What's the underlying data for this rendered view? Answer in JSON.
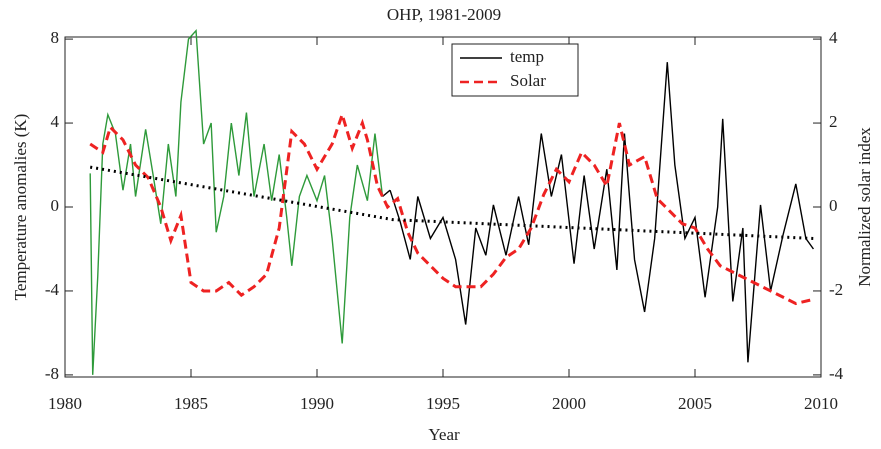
{
  "chart_data": {
    "type": "line",
    "title": "OHP, 1981-2009",
    "xlabel": "Year",
    "ylabel": "Temperature anomalies (K)",
    "y2label": "Normalized solar index",
    "xlim": [
      1980,
      2010
    ],
    "xticks": [
      1980,
      1985,
      1990,
      1995,
      2000,
      2005,
      2010
    ],
    "ylim": [
      -8.1,
      8.1
    ],
    "yticks": [
      -8,
      -4,
      0,
      4,
      8
    ],
    "y2lim": [
      -4.05,
      4.05
    ],
    "y2ticks": [
      -4,
      -2,
      0,
      2,
      4
    ],
    "legend": "top",
    "series": [
      {
        "name": "temp",
        "color": "#000000",
        "dash": "solid",
        "highlight": {
          "xlim": [
            1981,
            1992.7
          ],
          "color": "#2e9a3a"
        },
        "x": [
          1981,
          1981.1,
          1981.3,
          1981.5,
          1981.7,
          1982,
          1982.3,
          1982.6,
          1982.8,
          1983.2,
          1983.5,
          1983.8,
          1984.1,
          1984.4,
          1984.6,
          1984.9,
          1985.2,
          1985.5,
          1985.8,
          1986,
          1986.3,
          1986.6,
          1986.9,
          1987.2,
          1987.5,
          1987.9,
          1988.2,
          1988.5,
          1988.8,
          1989,
          1989.3,
          1989.6,
          1990,
          1990.3,
          1990.6,
          1991,
          1991.3,
          1991.6,
          1992,
          1992.3,
          1992.6,
          1992.9,
          1993.3,
          1993.7,
          1994,
          1994.5,
          1995,
          1995.5,
          1995.9,
          1996.3,
          1996.7,
          1997,
          1997.5,
          1998,
          1998.4,
          1998.9,
          1999.3,
          1999.7,
          2000.2,
          2000.6,
          2001,
          2001.5,
          2001.9,
          2002.2,
          2002.6,
          2003,
          2003.4,
          2003.9,
          2004.2,
          2004.6,
          2005,
          2005.4,
          2005.9,
          2006.1,
          2006.5,
          2006.9,
          2007.1,
          2007.6,
          2008,
          2008.5,
          2009,
          2009.4,
          2009.7
        ],
        "values": [
          1.6,
          -8.0,
          -3.3,
          3,
          4.4,
          3.5,
          0.8,
          3,
          0.5,
          3.7,
          1.5,
          -0.8,
          3,
          0.5,
          5,
          8,
          8.4,
          3,
          4,
          -1.2,
          0.5,
          4,
          1.5,
          4.5,
          0.5,
          3,
          0.3,
          2.5,
          -0.5,
          -2.8,
          0.5,
          1.5,
          0.3,
          1.5,
          -1.5,
          -6.5,
          -0.5,
          2,
          0.3,
          3.5,
          0.5,
          0.8,
          -0.7,
          -2.5,
          0.5,
          -1.5,
          -0.5,
          -2.5,
          -5.6,
          -1,
          -2.3,
          0.1,
          -2.3,
          0.5,
          -1.8,
          3.5,
          0.5,
          2.5,
          -2.7,
          1.5,
          -2,
          1.8,
          -3,
          3.5,
          -2.5,
          -5,
          -1.5,
          6.9,
          2,
          -1.5,
          -0.5,
          -4.3,
          0,
          4.2,
          -4.5,
          -1,
          -7.4,
          0.1,
          -4,
          -1.3,
          1.1,
          -1.5,
          -2
        ]
      },
      {
        "name": "Solar",
        "color": "#ee2222",
        "dash": "dashed",
        "axis": "y2",
        "x": [
          1981,
          1981.5,
          1981.8,
          1982.3,
          1982.8,
          1983.3,
          1983.8,
          1984.2,
          1984.6,
          1985,
          1985.5,
          1986,
          1986.5,
          1987,
          1987.5,
          1988,
          1988.5,
          1989,
          1989.5,
          1990,
          1990.6,
          1991,
          1991.4,
          1991.8,
          1992,
          1992.4,
          1992.8,
          1993.2,
          1993.6,
          1994,
          1995,
          1995.5,
          1996.5,
          1997,
          1997.5,
          1998,
          1998.5,
          1999,
          1999.5,
          2000,
          2000.5,
          2001,
          2001.5,
          2002,
          2002.4,
          2003,
          2003.5,
          2004,
          2004.5,
          2005,
          2005.5,
          2006,
          2007,
          2008,
          2009,
          2009.7
        ],
        "values": [
          1.5,
          1.3,
          1.9,
          1.6,
          1.0,
          0.7,
          0.0,
          -0.8,
          -0.2,
          -1.8,
          -2.0,
          -2.0,
          -1.8,
          -2.1,
          -1.9,
          -1.6,
          -0.5,
          1.8,
          1.5,
          0.9,
          1.5,
          2.2,
          1.4,
          2.0,
          1.6,
          0.5,
          0.0,
          0.2,
          -0.6,
          -1.1,
          -1.7,
          -1.9,
          -1.9,
          -1.6,
          -1.2,
          -1.0,
          -0.5,
          0.3,
          0.9,
          0.6,
          1.3,
          1.0,
          0.5,
          2.0,
          1.0,
          1.2,
          0.2,
          -0.1,
          -0.4,
          -0.5,
          -1.0,
          -1.4,
          -1.7,
          -2.0,
          -2.3,
          -2.2
        ]
      }
    ],
    "trend": {
      "color": "#000000",
      "x": [
        1981,
        1993,
        2009.7
      ],
      "values": [
        1.9,
        -0.6,
        -1.5
      ]
    }
  }
}
